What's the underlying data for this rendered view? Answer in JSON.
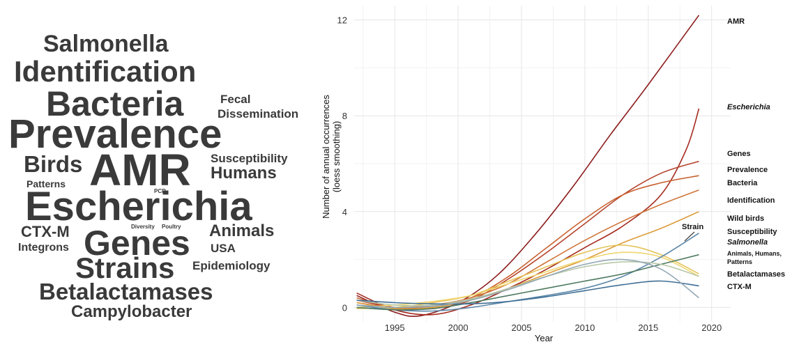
{
  "word_cloud": {
    "words": [
      {
        "text": "Salmonella",
        "size": 34
      },
      {
        "text": "Identification",
        "size": 42
      },
      {
        "text": "Bacteria",
        "size": 50
      },
      {
        "text": "Fecal",
        "size": 17
      },
      {
        "text": "Dissemination",
        "size": 17
      },
      {
        "text": "Prevalence",
        "size": 58
      },
      {
        "text": "Susceptibility",
        "size": 17
      },
      {
        "text": "Birds",
        "size": 33
      },
      {
        "text": "AMR",
        "size": 64
      },
      {
        "text": "Humans",
        "size": 24
      },
      {
        "text": "Patterns",
        "size": 14
      },
      {
        "text": "PCR",
        "size": 8
      },
      {
        "text": "Escherichia",
        "size": 58
      },
      {
        "text": "CTX-M",
        "size": 22
      },
      {
        "text": "Diversity",
        "size": 8
      },
      {
        "text": "Poultry",
        "size": 8
      },
      {
        "text": "Genes",
        "size": 50
      },
      {
        "text": "Animals",
        "size": 24
      },
      {
        "text": "Integrons",
        "size": 16
      },
      {
        "text": "USA",
        "size": 17
      },
      {
        "text": "Strains",
        "size": 42
      },
      {
        "text": "Epidemiology",
        "size": 17
      },
      {
        "text": "Betalactamases",
        "size": 33
      },
      {
        "text": "Campylobacter",
        "size": 24
      }
    ]
  },
  "chart_data": {
    "type": "line",
    "title": "",
    "xlabel": "Year",
    "ylabel": "Number of annual occurrences (loess smoothing)",
    "xlim": [
      1991.8,
      2021.5
    ],
    "ylim": [
      -0.6,
      12.6
    ],
    "xticks": [
      1995,
      2000,
      2005,
      2010,
      2015,
      2020
    ],
    "yticks": [
      0,
      4,
      8,
      12
    ],
    "grid": true,
    "series": [
      {
        "name": "AMR",
        "italic": false,
        "color": "#8b1a1a",
        "x": [
          1992,
          1995,
          1997,
          2000,
          2003,
          2006,
          2009,
          2012,
          2015,
          2019
        ],
        "y": [
          0.5,
          -0.2,
          -0.35,
          0.2,
          1.3,
          3.0,
          5.0,
          7.2,
          9.3,
          12.2
        ]
      },
      {
        "name": "Escherichia",
        "italic": true,
        "color": "#a52a1e",
        "x": [
          1992,
          1995,
          1998,
          2001,
          2004,
          2007,
          2010,
          2013,
          2016,
          2018,
          2019
        ],
        "y": [
          0.6,
          -0.1,
          -0.3,
          0.1,
          0.8,
          1.6,
          2.5,
          3.4,
          4.7,
          6.6,
          8.3
        ]
      },
      {
        "name": "Genes",
        "italic": false,
        "color": "#b5422a",
        "x": [
          1992,
          1995,
          1998,
          2001,
          2004,
          2007,
          2010,
          2013,
          2016,
          2019
        ],
        "y": [
          0.3,
          0.0,
          -0.05,
          0.3,
          1.2,
          2.3,
          3.5,
          4.7,
          5.6,
          6.1
        ]
      },
      {
        "name": "Prevalence",
        "italic": false,
        "color": "#c8602f",
        "x": [
          1992,
          1995,
          1998,
          2001,
          2004,
          2007,
          2010,
          2013,
          2016,
          2019
        ],
        "y": [
          0.4,
          0.0,
          0.05,
          0.4,
          1.3,
          2.5,
          3.7,
          4.7,
          5.2,
          5.5
        ]
      },
      {
        "name": "Bacteria",
        "italic": false,
        "color": "#d0763a",
        "x": [
          1992,
          1995,
          1998,
          2001,
          2004,
          2007,
          2010,
          2013,
          2016,
          2019
        ],
        "y": [
          0.2,
          0.0,
          0.1,
          0.4,
          1.0,
          1.9,
          2.8,
          3.6,
          4.3,
          4.9
        ]
      },
      {
        "name": "Identification",
        "italic": false,
        "color": "#dc9c3a",
        "x": [
          1992,
          1995,
          1998,
          2001,
          2004,
          2007,
          2010,
          2013,
          2016,
          2019
        ],
        "y": [
          0.2,
          -0.05,
          0.0,
          0.3,
          0.8,
          1.4,
          2.0,
          2.7,
          3.3,
          4.0
        ]
      },
      {
        "name": "Wild birds",
        "italic": false,
        "color": "#e5c35a",
        "x": [
          1992,
          1995,
          1998,
          2001,
          2004,
          2007,
          2010,
          2013,
          2016,
          2019
        ],
        "y": [
          -0.05,
          0.0,
          0.2,
          0.5,
          1.1,
          1.7,
          2.3,
          2.6,
          2.2,
          1.4
        ]
      },
      {
        "name": "Strain",
        "italic": false,
        "color": "#efd670",
        "x": [
          1992,
          1995,
          1998,
          2001,
          2004,
          2007,
          2010,
          2013,
          2016,
          2019
        ],
        "y": [
          0.0,
          0.1,
          0.25,
          0.5,
          1.0,
          1.5,
          2.0,
          2.3,
          2.1,
          1.3
        ]
      },
      {
        "name": "Susceptibility",
        "italic": false,
        "color": "#5b86a8",
        "x": [
          1992,
          1995,
          1998,
          2001,
          2004,
          2007,
          2010,
          2013,
          2016,
          2019
        ],
        "y": [
          0.1,
          -0.1,
          -0.15,
          0.0,
          0.25,
          0.5,
          0.8,
          1.3,
          2.1,
          3.1
        ]
      },
      {
        "name": "Salmonella",
        "italic": true,
        "color": "#4d7a60",
        "x": [
          1992,
          1995,
          1998,
          2001,
          2004,
          2007,
          2010,
          2013,
          2016,
          2019
        ],
        "y": [
          0.0,
          -0.1,
          -0.05,
          0.2,
          0.5,
          0.8,
          1.1,
          1.4,
          1.8,
          2.2
        ]
      },
      {
        "name": "Animals, Humans, Patterns",
        "italic": false,
        "color": "#b7c8a8",
        "x": [
          1992,
          1995,
          1998,
          2001,
          2004,
          2007,
          2010,
          2013,
          2016,
          2019
        ],
        "y": [
          0.3,
          0.1,
          0.1,
          0.35,
          0.8,
          1.3,
          1.7,
          1.9,
          1.8,
          1.3
        ]
      },
      {
        "name": "Betalactamases",
        "italic": false,
        "color": "#3f6e95",
        "x": [
          1992,
          1995,
          1998,
          2001,
          2004,
          2007,
          2010,
          2013,
          2016,
          2019
        ],
        "y": [
          0.3,
          0.2,
          0.15,
          0.15,
          0.25,
          0.45,
          0.7,
          0.95,
          1.1,
          0.9
        ]
      },
      {
        "name": "CTX-M",
        "italic": false,
        "color": "#93a8b5",
        "x": [
          1992,
          1995,
          1998,
          2001,
          2004,
          2007,
          2010,
          2013,
          2016,
          2019
        ],
        "y": [
          0.1,
          0.0,
          0.05,
          0.3,
          0.75,
          1.3,
          1.8,
          2.0,
          1.6,
          0.4
        ]
      }
    ]
  }
}
